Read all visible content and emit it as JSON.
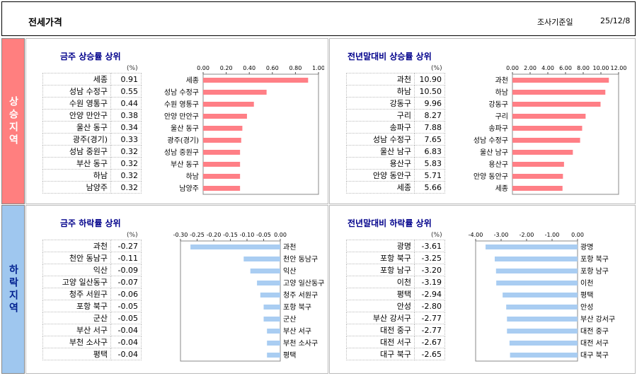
{
  "header": {
    "title": "전세가격",
    "date_label": "조사기준일",
    "date_value": "25/12/8"
  },
  "bands": {
    "rising": "상승지역",
    "falling": "하락지역"
  },
  "unit_label": "(%)",
  "colors": {
    "up_bar": "#ff7f86",
    "down_bar": "#a9cdf2",
    "band_up": "#ff7f7f",
    "band_down": "#9fc7ef",
    "title_blue": "#00008b"
  },
  "chart_data": [
    {
      "id": "weekly-up",
      "type": "bar",
      "title": "금주 상승률 상위",
      "orientation": "horizontal",
      "categories": [
        "세종",
        "성남 수정구",
        "수원 영통구",
        "안양 만안구",
        "울산 동구",
        "광주(경기)",
        "성남 중원구",
        "부산 동구",
        "하남",
        "남양주"
      ],
      "values": [
        0.91,
        0.55,
        0.44,
        0.38,
        0.34,
        0.33,
        0.32,
        0.32,
        0.32,
        0.32
      ],
      "display_values": [
        "0.91",
        "0.55",
        "0.44",
        "0.38",
        "0.34",
        "0.33",
        "0.32",
        "0.32",
        "0.32",
        "0.32"
      ],
      "xlim": [
        0,
        1.0
      ],
      "ticks": [
        "0.00",
        "0.20",
        "0.40",
        "0.60",
        "0.80",
        "1.00"
      ],
      "tick_values": [
        0,
        0.2,
        0.4,
        0.6,
        0.8,
        1.0
      ]
    },
    {
      "id": "ytd-up",
      "type": "bar",
      "title": "전년말대비 상승률 상위",
      "orientation": "horizontal",
      "categories": [
        "과천",
        "하남",
        "강동구",
        "구리",
        "송파구",
        "성남 수정구",
        "울산 남구",
        "용산구",
        "안양 동안구",
        "세종"
      ],
      "values": [
        10.9,
        10.5,
        9.96,
        8.27,
        7.88,
        7.65,
        6.83,
        5.83,
        5.71,
        5.66
      ],
      "display_values": [
        "10.90",
        "10.50",
        "9.96",
        "8.27",
        "7.88",
        "7.65",
        "6.83",
        "5.83",
        "5.71",
        "5.66"
      ],
      "xlim": [
        0,
        12.0
      ],
      "ticks": [
        "0.00",
        "2.00",
        "4.00",
        "6.00",
        "8.00",
        "10.00",
        "12.00"
      ],
      "tick_values": [
        0,
        2,
        4,
        6,
        8,
        10,
        12
      ]
    },
    {
      "id": "weekly-down",
      "type": "bar",
      "title": "금주 하락률 상위",
      "orientation": "horizontal",
      "categories": [
        "과천",
        "천안 동남구",
        "익산",
        "고양 일산동구",
        "청주 서원구",
        "포항 북구",
        "군산",
        "부산 서구",
        "부천 소사구",
        "평택"
      ],
      "values": [
        -0.27,
        -0.11,
        -0.09,
        -0.07,
        -0.06,
        -0.05,
        -0.05,
        -0.04,
        -0.04,
        -0.04
      ],
      "display_values": [
        "-0.27",
        "-0.11",
        "-0.09",
        "-0.07",
        "-0.06",
        "-0.05",
        "-0.05",
        "-0.04",
        "-0.04",
        "-0.04"
      ],
      "xlim": [
        -0.3,
        0.0
      ],
      "ticks": [
        "-0.30",
        "-0.25",
        "-0.20",
        "-0.15",
        "-0.10",
        "-0.05",
        "0.00"
      ],
      "tick_values": [
        -0.3,
        -0.25,
        -0.2,
        -0.15,
        -0.1,
        -0.05,
        0.0
      ]
    },
    {
      "id": "ytd-down",
      "type": "bar",
      "title": "전년말대비 하락률 상위",
      "orientation": "horizontal",
      "categories": [
        "광명",
        "포항 북구",
        "포항 남구",
        "이천",
        "평택",
        "안성",
        "부산 강서구",
        "대전 중구",
        "대전 서구",
        "대구 북구"
      ],
      "values": [
        -3.61,
        -3.25,
        -3.2,
        -3.19,
        -2.94,
        -2.8,
        -2.77,
        -2.77,
        -2.67,
        -2.65
      ],
      "display_values": [
        "-3.61",
        "-3.25",
        "-3.20",
        "-3.19",
        "-2.94",
        "-2.80",
        "-2.77",
        "-2.77",
        "-2.67",
        "-2.65"
      ],
      "xlim": [
        -4.0,
        0.0
      ],
      "ticks": [
        "-4.00",
        "-3.00",
        "-2.00",
        "-1.00",
        "0.00"
      ],
      "tick_values": [
        -4,
        -3,
        -2,
        -1,
        0
      ]
    }
  ]
}
